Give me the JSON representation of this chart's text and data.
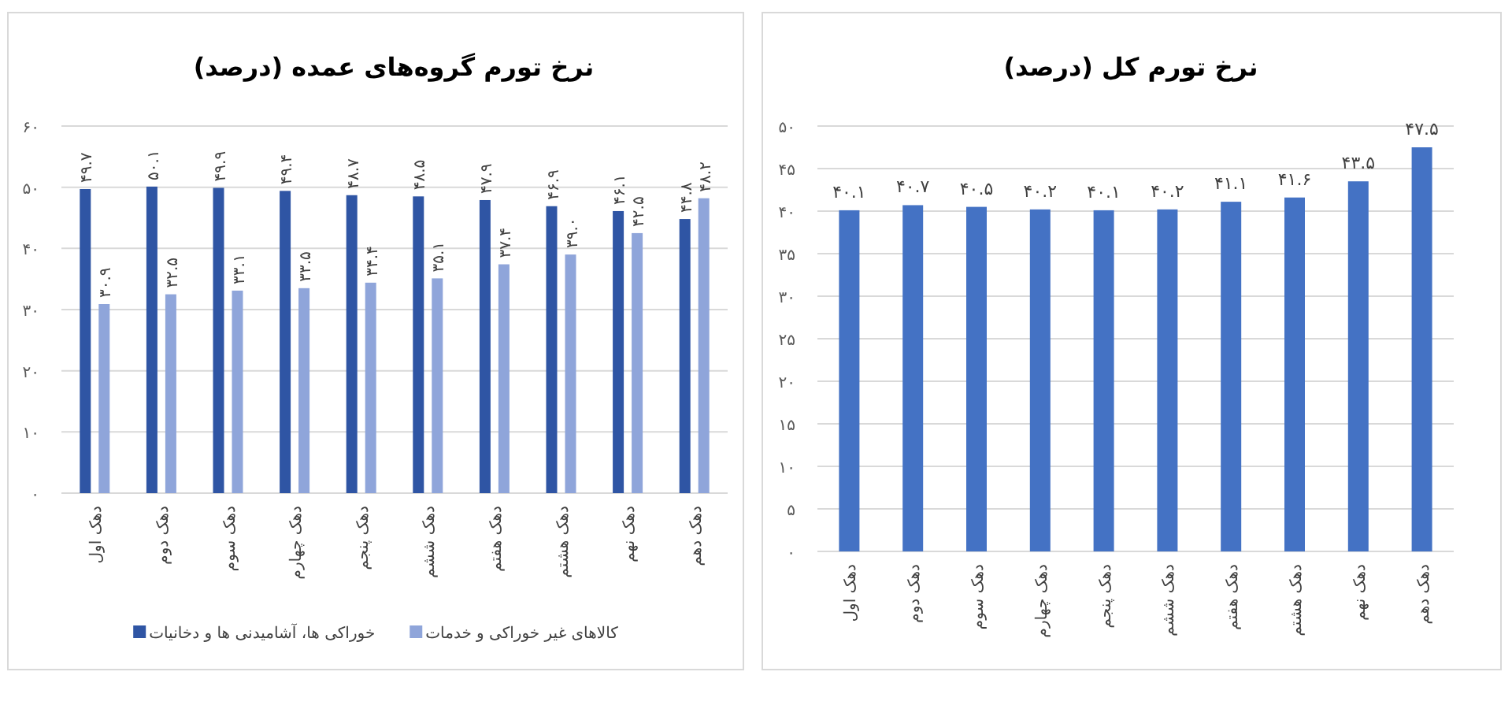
{
  "chart_data": [
    {
      "type": "bar",
      "title": "نرخ تورم گروه‌های عمده (درصد)",
      "categories": [
        "دهک اول",
        "دهک دوم",
        "دهک سوم",
        "دهک چهارم",
        "دهک پنجم",
        "دهک ششم",
        "دهک هفتم",
        "دهک هشتم",
        "دهک نهم",
        "دهک دهم"
      ],
      "series": [
        {
          "name": "خوراکی ها، آشامیدنی ها و دخانیات",
          "color": "#2f55a4",
          "values": [
            49.7,
            50.1,
            49.9,
            49.4,
            48.7,
            48.5,
            47.9,
            46.9,
            46.1,
            44.8
          ],
          "value_labels": [
            "۴۹.۷",
            "۵۰.۱",
            "۴۹.۹",
            "۴۹.۴",
            "۴۸.۷",
            "۴۸.۵",
            "۴۷.۹",
            "۴۶.۹",
            "۴۶.۱",
            "۴۴.۸"
          ]
        },
        {
          "name": "کالاهای غیر خوراکی و خدمات",
          "color": "#8fa5da",
          "values": [
            30.9,
            32.5,
            33.1,
            33.5,
            34.4,
            35.1,
            37.4,
            39.0,
            42.5,
            48.2
          ],
          "value_labels": [
            "۳۰.۹",
            "۳۲.۵",
            "۳۳.۱",
            "۳۳.۵",
            "۳۴.۴",
            "۳۵.۱",
            "۳۷.۴",
            "۳۹.۰",
            "۴۲.۵",
            "۴۸.۲"
          ]
        }
      ],
      "ylim": [
        0,
        60
      ],
      "yticks": [
        {
          "value": 0,
          "label": "۰"
        },
        {
          "value": 10,
          "label": "۱۰"
        },
        {
          "value": 20,
          "label": "۲۰"
        },
        {
          "value": 30,
          "label": "۳۰"
        },
        {
          "value": 40,
          "label": "۴۰"
        },
        {
          "value": 50,
          "label": "۵۰"
        },
        {
          "value": 60,
          "label": "۶۰"
        }
      ],
      "grid": "y",
      "legend": "bottom"
    },
    {
      "type": "bar",
      "title": "نرخ تورم کل (درصد)",
      "categories": [
        "دهک اول",
        "دهک دوم",
        "دهک سوم",
        "دهک چهارم",
        "دهک پنجم",
        "دهک ششم",
        "دهک هفتم",
        "دهک هشتم",
        "دهک نهم",
        "دهک دهم"
      ],
      "values": [
        40.1,
        40.7,
        40.5,
        40.2,
        40.1,
        40.2,
        41.1,
        41.6,
        43.5,
        47.5
      ],
      "color": "#4472c4",
      "value_labels": [
        "۴۰.۱",
        "۴۰.۷",
        "۴۰.۵",
        "۴۰.۲",
        "۴۰.۱",
        "۴۰.۲",
        "۴۱.۱",
        "۴۱.۶",
        "۴۳.۵",
        "۴۷.۵"
      ],
      "ylim": [
        0,
        50
      ],
      "yticks": [
        {
          "value": 0,
          "label": "۰"
        },
        {
          "value": 5,
          "label": "۵"
        },
        {
          "value": 10,
          "label": "۱۰"
        },
        {
          "value": 15,
          "label": "۱۵"
        },
        {
          "value": 20,
          "label": "۲۰"
        },
        {
          "value": 25,
          "label": "۲۵"
        },
        {
          "value": 30,
          "label": "۳۰"
        },
        {
          "value": 35,
          "label": "۳۵"
        },
        {
          "value": 40,
          "label": "۴۰"
        },
        {
          "value": 45,
          "label": "۴۵"
        },
        {
          "value": 50,
          "label": "۵۰"
        }
      ],
      "grid": "y"
    }
  ]
}
